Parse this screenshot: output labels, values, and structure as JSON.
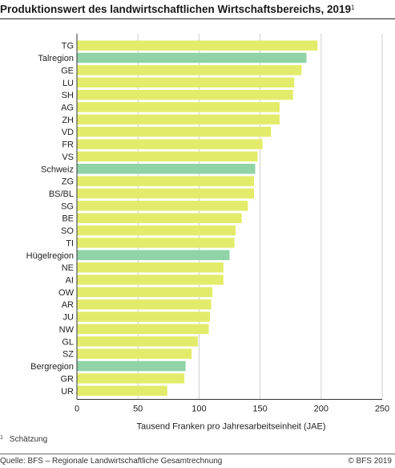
{
  "title": "Produktionswert des landwirtschaftlichen Wirtschaftsbereichs, 2019",
  "title_footnote_mark": "1",
  "footnote": {
    "mark": "1",
    "text": "Schätzung"
  },
  "source": "Quelle: BFS – Regionale Landwirtschaftliche Gesamtrechnung",
  "copyright": "© BFS 2019",
  "colors": {
    "canton": "#e3ec6a",
    "aggregate": "#8fd3a6",
    "grid": "#d0d0d0",
    "axis": "#333333"
  },
  "chart_data": {
    "type": "bar",
    "orientation": "horizontal",
    "categories": [
      "TG",
      "Talregion",
      "GE",
      "LU",
      "SH",
      "AG",
      "ZH",
      "VD",
      "FR",
      "VS",
      "Schweiz",
      "ZG",
      "BS/BL",
      "SG",
      "BE",
      "SO",
      "TI",
      "Hügelregion",
      "NE",
      "AI",
      "OW",
      "AR",
      "JU",
      "NW",
      "GL",
      "SZ",
      "Bergregion",
      "GR",
      "UR"
    ],
    "values": [
      197,
      188,
      184,
      178,
      177,
      166,
      166,
      159,
      152,
      148,
      146,
      145,
      145,
      140,
      135,
      130,
      129,
      125,
      120,
      120,
      111,
      110,
      109,
      108,
      99,
      94,
      89,
      88,
      74
    ],
    "highlighted": [
      "Talregion",
      "Schweiz",
      "Hügelregion",
      "Bergregion"
    ],
    "xlabel": "Tausend Franken pro Jahresarbeitseinheit (JAE)",
    "xlim": [
      0,
      250
    ],
    "xticks": [
      0,
      50,
      100,
      150,
      200,
      250
    ],
    "grid": true
  }
}
